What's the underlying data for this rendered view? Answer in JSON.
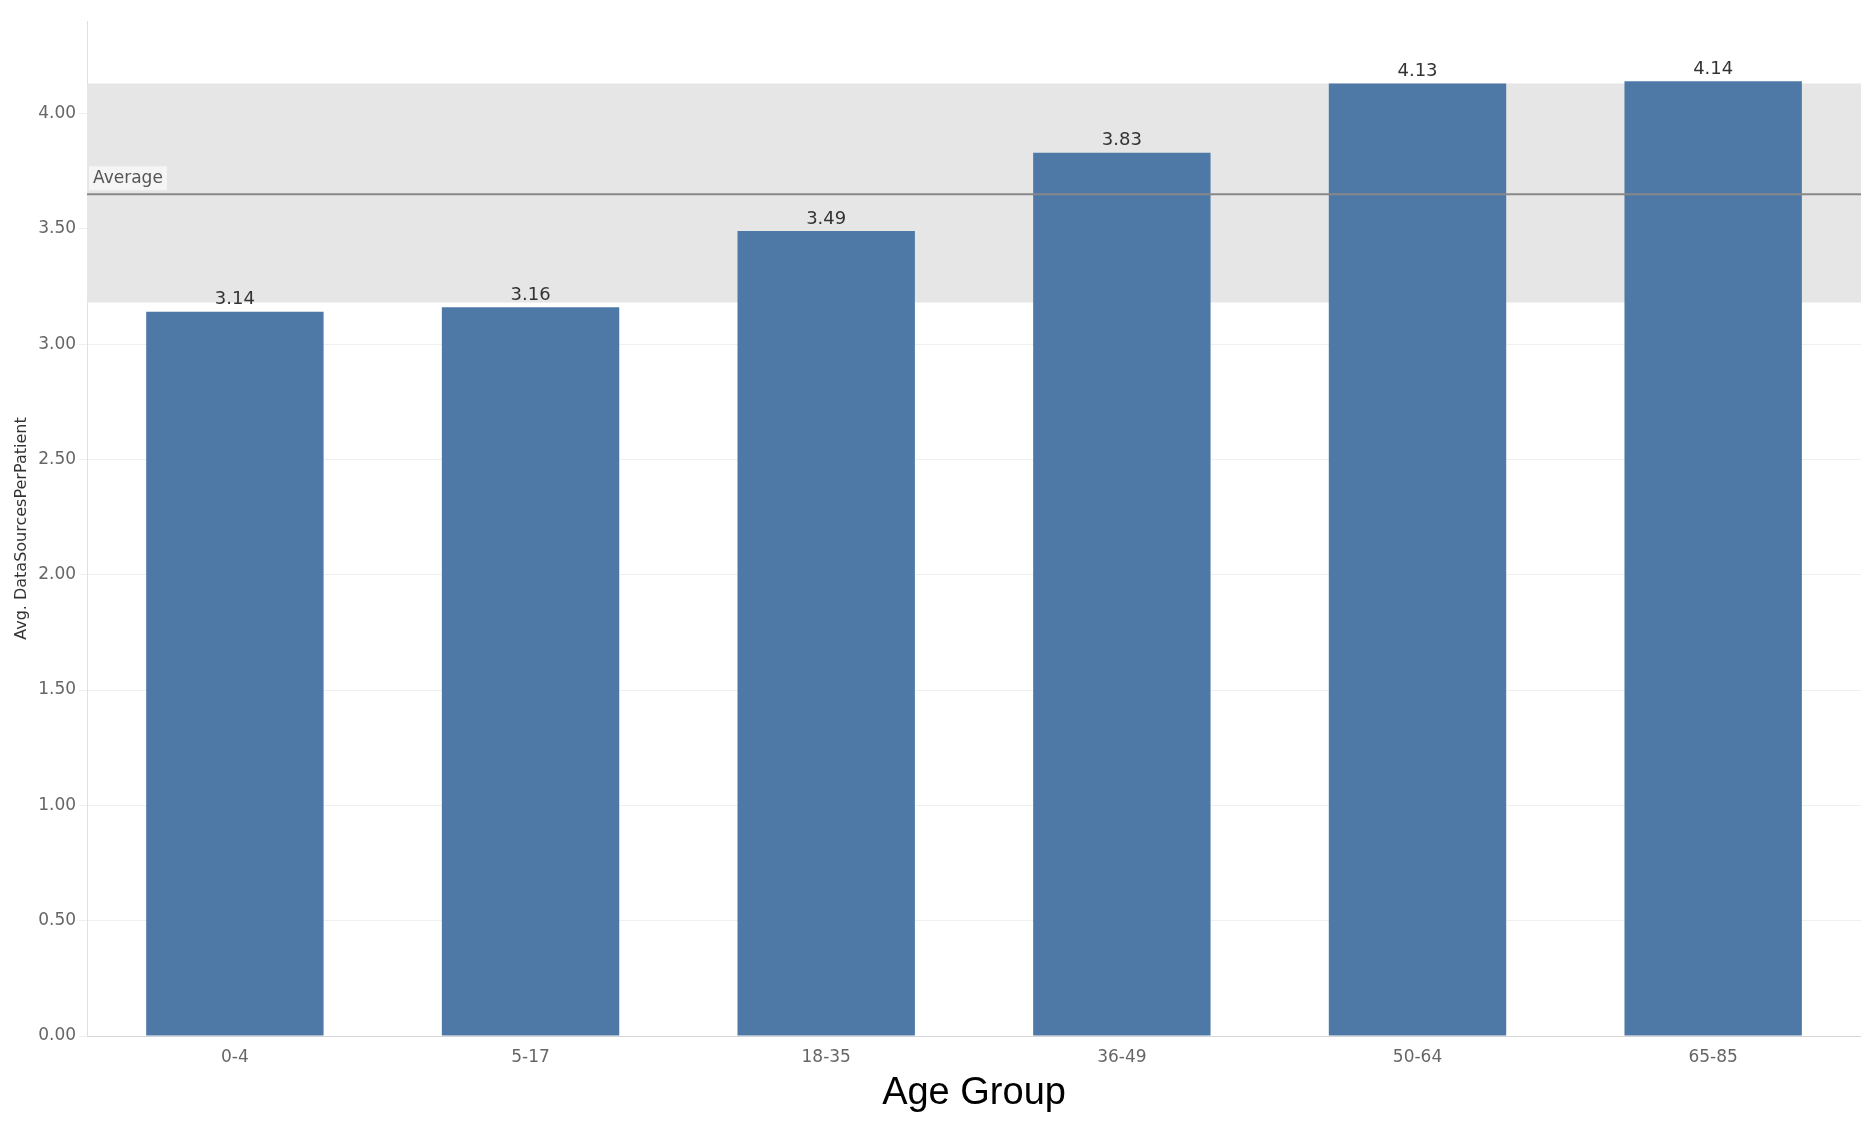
{
  "chart_data": {
    "type": "bar",
    "xlabel": "Age Group",
    "ylabel": "Avg. DataSourcesPerPatient",
    "categories": [
      "0-4",
      "5-17",
      "18-35",
      "36-49",
      "50-64",
      "65-85"
    ],
    "values": [
      3.14,
      3.16,
      3.49,
      3.83,
      4.13,
      4.14
    ],
    "color": "#4e79a7",
    "data_labels": true,
    "ylim": [
      0,
      4.4
    ],
    "yticks": [
      {
        "value": 0,
        "label": "0.00"
      },
      {
        "value": 0.5,
        "label": "0.50"
      },
      {
        "value": 1,
        "label": "1.00"
      },
      {
        "value": 1.5,
        "label": "1.50"
      },
      {
        "value": 2,
        "label": "2.00"
      },
      {
        "value": 2.5,
        "label": "2.50"
      },
      {
        "value": 3,
        "label": "3.00"
      },
      {
        "value": 3.5,
        "label": "3.50"
      },
      {
        "value": 4,
        "label": "4.00"
      }
    ],
    "grid": "y",
    "legend": false,
    "bands": [
      {
        "axis": "y",
        "from": 3.18,
        "to": 4.13,
        "color": "#e6e6e6"
      }
    ],
    "ref_lines": [
      {
        "axis": "y",
        "value": 3.65,
        "label": "Average",
        "color": "#888888"
      }
    ]
  }
}
